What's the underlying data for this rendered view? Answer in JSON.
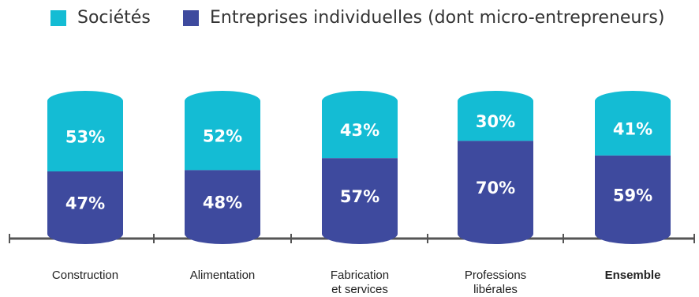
{
  "legend": {
    "items": [
      {
        "label": "Sociétés",
        "color": "#14BCD4"
      },
      {
        "label": "Entreprises individuelles (dont micro-entrepreneurs)",
        "color": "#3E4A9E"
      }
    ]
  },
  "chart_data": {
    "type": "bar",
    "stacked": true,
    "normalized": true,
    "legend_position": "top",
    "grid": false,
    "categories": [
      [
        "Construction"
      ],
      [
        "Alimentation"
      ],
      [
        "Fabrication",
        "et services"
      ],
      [
        "Professions",
        "libérales"
      ],
      [
        "Ensemble"
      ]
    ],
    "highlight_category": 4,
    "series": [
      {
        "name": "Entreprises individuelles (dont micro-entrepreneurs)",
        "color": "#3E4A9E",
        "values": [
          47,
          48,
          57,
          70,
          59
        ],
        "labels": [
          "47%",
          "48%",
          "57%",
          "70%",
          "59%"
        ]
      },
      {
        "name": "Sociétés",
        "color": "#14BCD4",
        "values": [
          53,
          52,
          43,
          30,
          41
        ],
        "labels": [
          "53%",
          "52%",
          "43%",
          "30%",
          "41%"
        ]
      }
    ],
    "ylim": [
      0,
      100
    ]
  }
}
